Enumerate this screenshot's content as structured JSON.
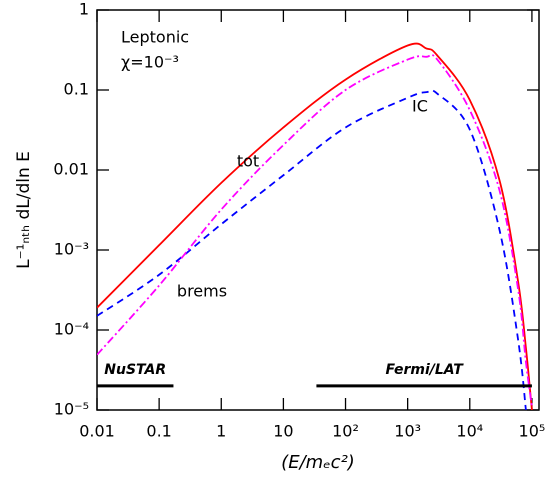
{
  "chart_data": {
    "type": "line",
    "x_label": "(E/mₑc²)",
    "y_label": "L⁻¹ₙₜₕ dL/dln E",
    "annotations": [
      "Leptonic",
      "χ=10⁻³"
    ],
    "xlog": true,
    "ylog": true,
    "xlim": [
      0.01,
      130000
    ],
    "ylim": [
      1e-05,
      1
    ],
    "xticks": [
      0.01,
      0.1,
      1,
      10,
      {
        "value": 100,
        "label": "10²"
      },
      {
        "value": 1000,
        "label": "10³"
      },
      {
        "value": 10000,
        "label": "10⁴"
      },
      {
        "value": 100000,
        "label": "10⁵"
      }
    ],
    "yticks": [
      {
        "value": 1e-05,
        "label": "10⁻⁵"
      },
      {
        "value": 0.0001,
        "label": "10⁻⁴"
      },
      {
        "value": 0.001,
        "label": "10⁻³"
      },
      0.01,
      0.1,
      1
    ],
    "x": [
      0.01,
      0.1,
      1,
      10,
      100,
      1000,
      2000,
      3000,
      10000,
      30000,
      60000,
      80000,
      100000
    ],
    "series": [
      {
        "name": "tot",
        "color": "#ff0000",
        "dash": "",
        "values": [
          0.00019,
          0.00115,
          0.0069,
          0.034,
          0.135,
          0.36,
          0.33,
          0.27,
          0.075,
          0.0075,
          0.0004,
          6e-05,
          1e-05
        ]
      },
      {
        "name": "IC",
        "color": "#0000ff",
        "dash": "7,5",
        "values": [
          0.00015,
          0.00049,
          0.0021,
          0.0086,
          0.034,
          0.08,
          0.094,
          0.09,
          0.032,
          0.0018,
          7.5e-05,
          1e-05,
          null
        ]
      },
      {
        "name": "brems",
        "color": "#ff00ff",
        "dash": "8,3,2,3",
        "values": [
          4.9e-05,
          0.00036,
          0.0032,
          0.0205,
          0.1,
          0.24,
          0.26,
          0.24,
          0.056,
          0.0056,
          0.00032,
          4e-05,
          1.1e-05
        ]
      }
    ],
    "instruments": [
      {
        "name": "NuSTAR",
        "range": [
          0.01,
          0.17
        ],
        "level": 2e-05
      },
      {
        "name": "Fermi/LAT",
        "range": [
          34,
          100000
        ],
        "level": 2e-05
      }
    ]
  }
}
